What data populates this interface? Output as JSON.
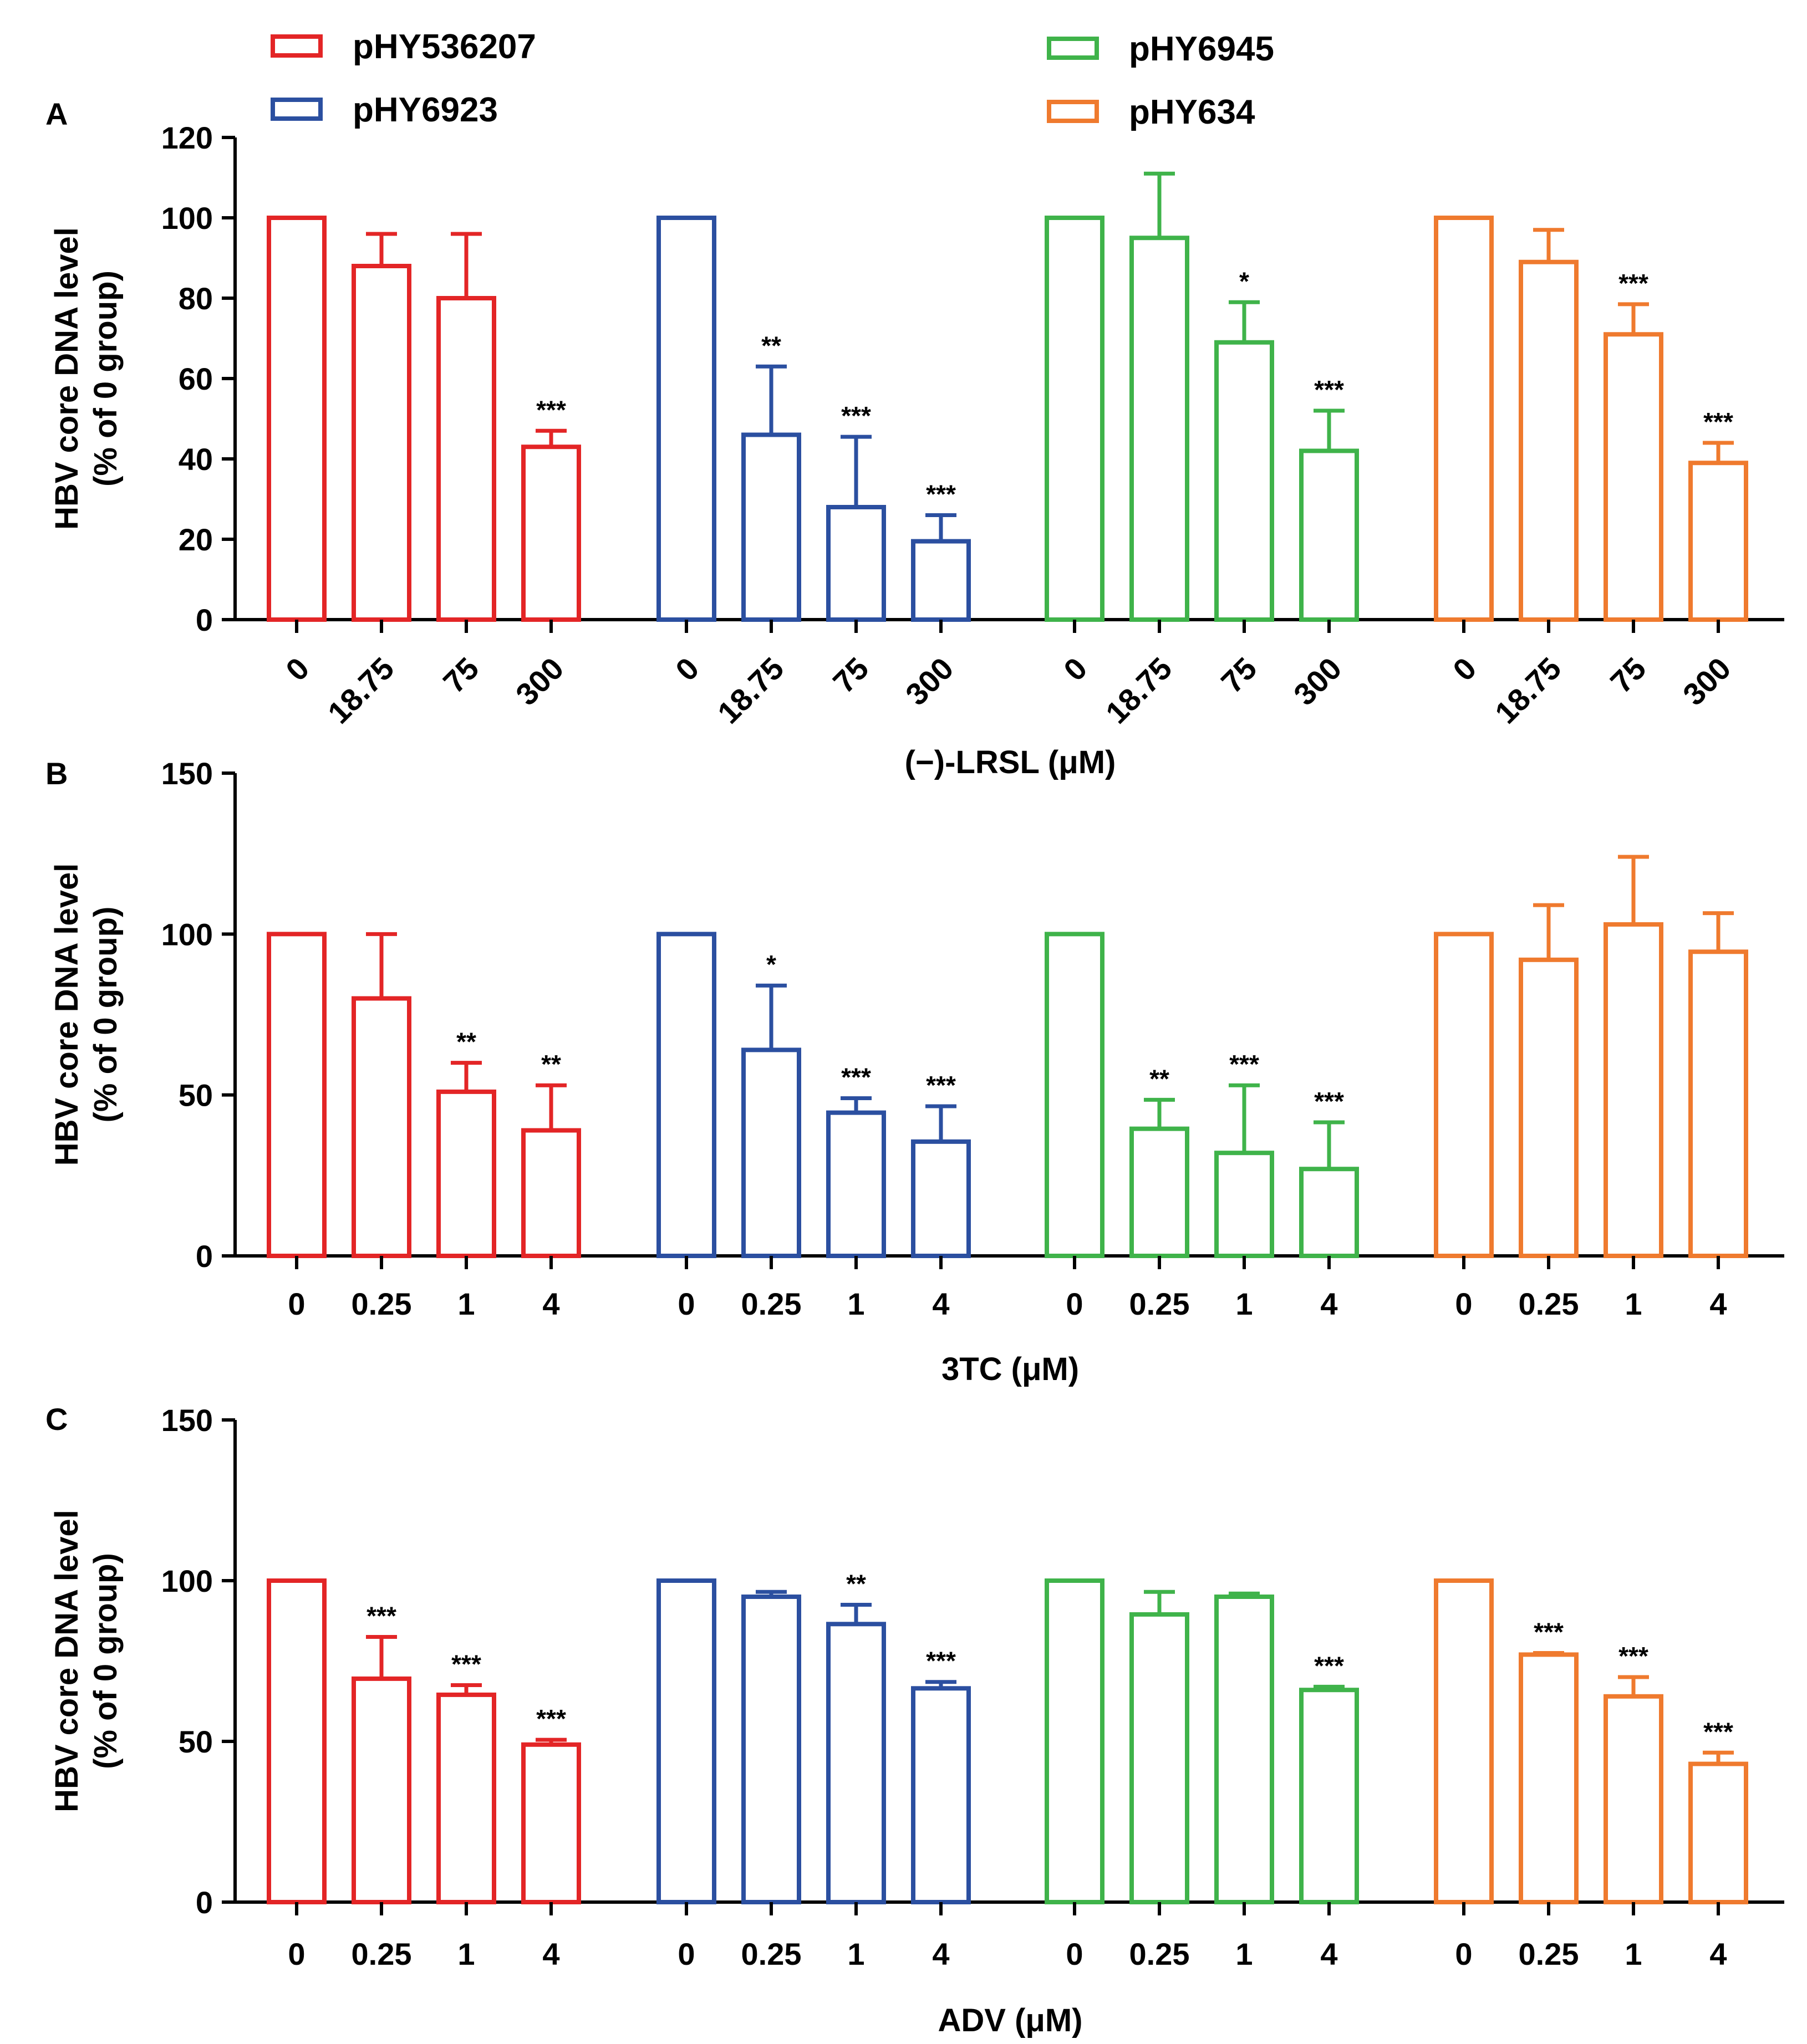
{
  "chart_data": [
    {
      "panel": "A",
      "type": "bar",
      "ylabel_line1": "HBV core DNA level",
      "ylabel_line2": "(% of 0 group)",
      "xlabel": "(−)-LRSL (μM)",
      "ylim": [
        0,
        120
      ],
      "yticks": [
        "0",
        "20",
        "40",
        "60",
        "80",
        "100",
        "120"
      ],
      "categories": [
        "0",
        "18.75",
        "75",
        "300"
      ],
      "series": [
        {
          "name": "pHY536207",
          "values": [
            100,
            88,
            80,
            43
          ],
          "errors": [
            0,
            8,
            16,
            4
          ],
          "stars": [
            "",
            "",
            "",
            "***"
          ]
        },
        {
          "name": "pHY6923",
          "values": [
            100,
            46,
            28,
            19.5
          ],
          "errors": [
            0,
            17,
            17.5,
            6.5
          ],
          "stars": [
            "",
            "**",
            "***",
            "***"
          ]
        },
        {
          "name": "pHY6945",
          "values": [
            100,
            95,
            69,
            42
          ],
          "errors": [
            0,
            16,
            10,
            10
          ],
          "stars": [
            "",
            "",
            "*",
            "***"
          ]
        },
        {
          "name": "pHY634",
          "values": [
            100,
            89,
            71,
            39
          ],
          "errors": [
            0,
            8,
            7.5,
            5
          ],
          "stars": [
            "",
            "",
            "***",
            "***"
          ]
        }
      ]
    },
    {
      "panel": "B",
      "type": "bar",
      "ylabel_line1": "HBV core DNA level",
      "ylabel_line2": "(% of 0 group)",
      "xlabel": "3TC (μM)",
      "ylim": [
        0,
        150
      ],
      "yticks": [
        "0",
        "50",
        "100",
        "150"
      ],
      "categories": [
        "0",
        "0.25",
        "1",
        "4"
      ],
      "series": [
        {
          "name": "pHY536207",
          "values": [
            100,
            80,
            51,
            39
          ],
          "errors": [
            0,
            20,
            9,
            14
          ],
          "stars": [
            "",
            "",
            "**",
            "**"
          ]
        },
        {
          "name": "pHY6923",
          "values": [
            100,
            64,
            44.5,
            35.5
          ],
          "errors": [
            0,
            20,
            4.5,
            11
          ],
          "stars": [
            "",
            "*",
            "***",
            "***"
          ]
        },
        {
          "name": "pHY6945",
          "values": [
            100,
            39.5,
            32,
            27
          ],
          "errors": [
            0,
            9,
            21,
            14.5
          ],
          "stars": [
            "",
            "**",
            "***",
            "***"
          ]
        },
        {
          "name": "pHY634",
          "values": [
            100,
            92,
            103,
            94.5
          ],
          "errors": [
            0,
            17,
            21,
            12
          ],
          "stars": [
            "",
            "",
            "",
            ""
          ]
        }
      ]
    },
    {
      "panel": "C",
      "type": "bar",
      "ylabel_line1": "HBV core DNA level",
      "ylabel_line2": "(% of 0 group)",
      "xlabel": "ADV (μM)",
      "ylim": [
        0,
        150
      ],
      "yticks": [
        "0",
        "50",
        "100",
        "150"
      ],
      "categories": [
        "0",
        "0.25",
        "1",
        "4"
      ],
      "series": [
        {
          "name": "pHY536207",
          "values": [
            100,
            69.5,
            64.5,
            49
          ],
          "errors": [
            0,
            13,
            3,
            1.5
          ],
          "stars": [
            "",
            "***",
            "***",
            "***"
          ]
        },
        {
          "name": "pHY6923",
          "values": [
            100,
            95,
            86.5,
            66.5
          ],
          "errors": [
            0,
            1.5,
            6,
            2
          ],
          "stars": [
            "",
            "",
            "**",
            "***"
          ]
        },
        {
          "name": "pHY6945",
          "values": [
            100,
            89.5,
            95,
            66
          ],
          "errors": [
            0,
            7,
            1,
            1
          ],
          "stars": [
            "",
            "",
            "",
            "***"
          ]
        },
        {
          "name": "pHY634",
          "values": [
            100,
            77,
            64,
            43
          ],
          "errors": [
            0,
            0.5,
            6,
            3.5
          ],
          "stars": [
            "",
            "***",
            "***",
            "***"
          ]
        }
      ]
    }
  ],
  "legend": [
    {
      "label": "pHY536207",
      "color": "#e32526"
    },
    {
      "label": "pHY6923",
      "color": "#2b4fa0"
    },
    {
      "label": "pHY6945",
      "color": "#3fb34a"
    },
    {
      "label": "pHY634",
      "color": "#ef7a2e"
    }
  ]
}
